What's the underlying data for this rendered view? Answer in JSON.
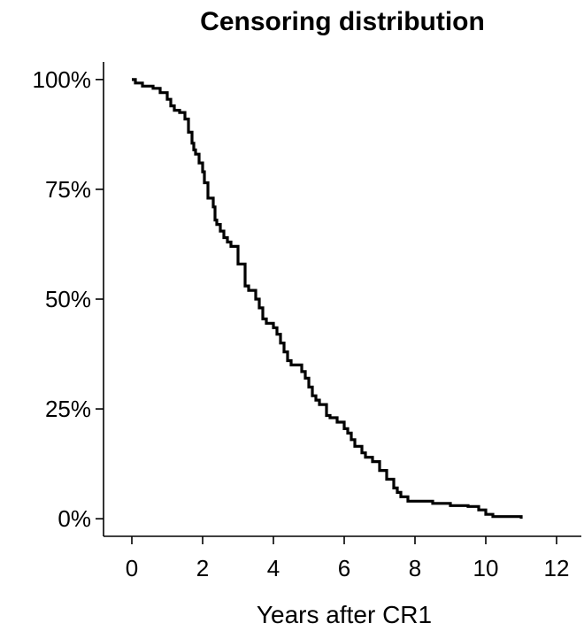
{
  "chart_data": {
    "type": "line",
    "step": true,
    "title": "Censoring distribution",
    "xlabel": "Years after CR1",
    "ylabel": "",
    "xlim": [
      -0.8,
      12.7
    ],
    "ylim": [
      -0.04,
      1.04
    ],
    "xticks": [
      0,
      2,
      4,
      6,
      8,
      10,
      12
    ],
    "xtick_labels": [
      "0",
      "2",
      "4",
      "6",
      "8",
      "10",
      "12"
    ],
    "yticks": [
      0,
      0.25,
      0.5,
      0.75,
      1.0
    ],
    "ytick_labels": [
      "0%",
      "25%",
      "50%",
      "75%",
      "100%"
    ],
    "grid": false,
    "legend": "none",
    "series": [
      {
        "color": "#000000",
        "x": [
          0,
          0.1,
          0.3,
          0.5,
          0.6,
          0.8,
          1.0,
          1.1,
          1.2,
          1.35,
          1.5,
          1.6,
          1.7,
          1.75,
          1.8,
          1.9,
          2.0,
          2.05,
          2.15,
          2.3,
          2.35,
          2.4,
          2.5,
          2.6,
          2.7,
          2.8,
          3.0,
          3.2,
          3.3,
          3.5,
          3.6,
          3.7,
          3.8,
          4.0,
          4.1,
          4.2,
          4.3,
          4.4,
          4.5,
          4.8,
          4.9,
          5.0,
          5.1,
          5.2,
          5.3,
          5.5,
          5.6,
          5.8,
          6.0,
          6.1,
          6.2,
          6.3,
          6.5,
          6.6,
          6.8,
          7.0,
          7.2,
          7.4,
          7.5,
          7.6,
          7.8,
          8.0,
          8.5,
          9.0,
          9.5,
          9.8,
          10.0,
          10.2,
          11.0
        ],
        "y": [
          1.0,
          0.992,
          0.985,
          0.985,
          0.98,
          0.97,
          0.955,
          0.94,
          0.93,
          0.925,
          0.91,
          0.88,
          0.855,
          0.84,
          0.83,
          0.81,
          0.79,
          0.765,
          0.73,
          0.71,
          0.68,
          0.67,
          0.655,
          0.64,
          0.63,
          0.62,
          0.58,
          0.53,
          0.52,
          0.5,
          0.48,
          0.455,
          0.445,
          0.435,
          0.42,
          0.4,
          0.38,
          0.36,
          0.35,
          0.335,
          0.32,
          0.3,
          0.28,
          0.27,
          0.26,
          0.235,
          0.23,
          0.22,
          0.205,
          0.195,
          0.18,
          0.165,
          0.15,
          0.14,
          0.13,
          0.11,
          0.09,
          0.07,
          0.06,
          0.05,
          0.04,
          0.04,
          0.035,
          0.03,
          0.028,
          0.02,
          0.01,
          0.005,
          0.0
        ]
      }
    ]
  }
}
